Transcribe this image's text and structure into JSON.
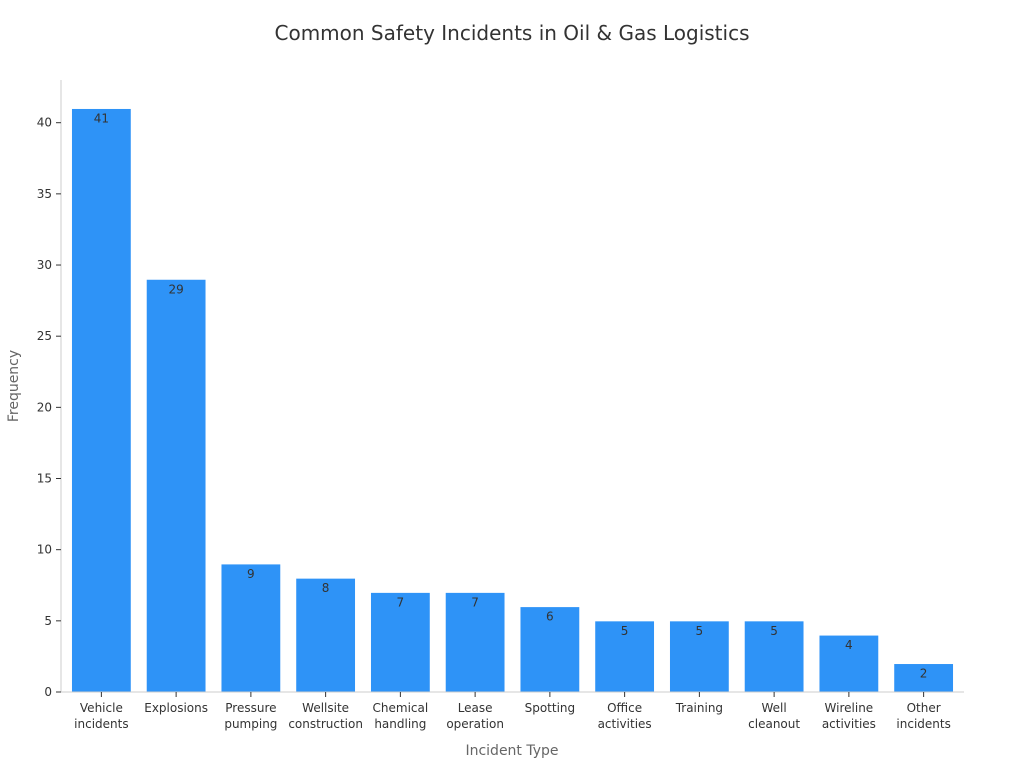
{
  "chart_data": {
    "type": "bar",
    "title": "Common Safety Incidents in Oil & Gas Logistics",
    "xlabel": "Incident Type",
    "ylabel": "Frequency",
    "ylim": [
      0,
      43
    ],
    "yticks": [
      0,
      5,
      10,
      15,
      20,
      25,
      30,
      35,
      40
    ],
    "grid": false,
    "legend": "none",
    "bar_color": "#2e93f7",
    "categories": [
      [
        "Vehicle",
        "incidents"
      ],
      [
        "Explosions"
      ],
      [
        "Pressure",
        "pumping"
      ],
      [
        "Wellsite",
        "construction"
      ],
      [
        "Chemical",
        "handling"
      ],
      [
        "Lease",
        "operation"
      ],
      [
        "Spotting"
      ],
      [
        "Office",
        "activities"
      ],
      [
        "Training"
      ],
      [
        "Well",
        "cleanout"
      ],
      [
        "Wireline",
        "activities"
      ],
      [
        "Other",
        "incidents"
      ]
    ],
    "values": [
      41,
      29,
      9,
      8,
      7,
      7,
      6,
      5,
      5,
      5,
      4,
      2
    ]
  }
}
